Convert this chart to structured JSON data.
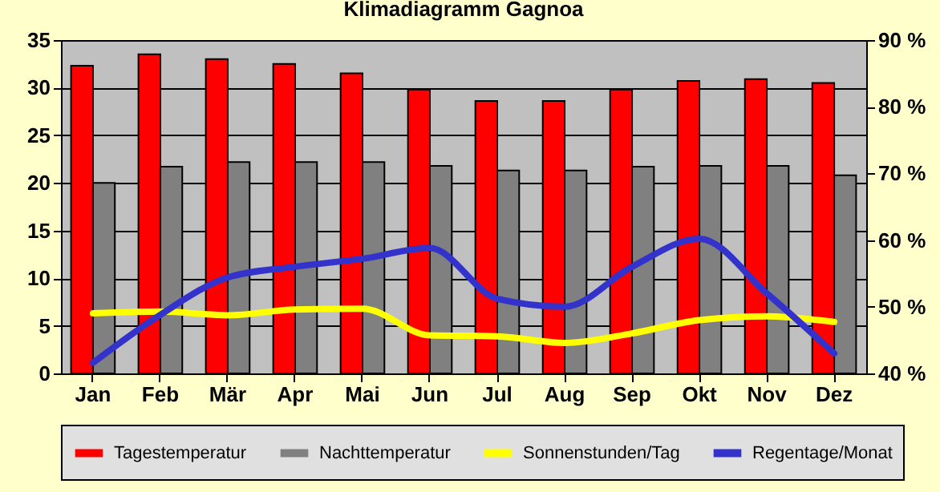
{
  "chart_data": {
    "type": "bar",
    "title": "Klimadiagramm Gagnoa",
    "categories": [
      "Jan",
      "Feb",
      "Mär",
      "Apr",
      "Mai",
      "Jun",
      "Jul",
      "Aug",
      "Sep",
      "Okt",
      "Nov",
      "Dez"
    ],
    "series": [
      {
        "name": "Tagestemperatur",
        "color": "#ff0000",
        "values": [
          32.3,
          33.5,
          33.0,
          32.5,
          31.5,
          29.8,
          28.6,
          28.6,
          29.8,
          30.7,
          30.9,
          30.5
        ]
      },
      {
        "name": "Nachttemperatur",
        "color": "#808080",
        "values": [
          20.0,
          21.7,
          22.2,
          22.2,
          22.2,
          21.8,
          21.3,
          21.3,
          21.7,
          21.8,
          21.8,
          20.8
        ]
      },
      {
        "name": "Sonnenstunden/Tag",
        "color": "#ffff00",
        "type": "line",
        "values": [
          6.3,
          6.5,
          6.1,
          6.7,
          6.8,
          4.0,
          3.9,
          3.2,
          4.2,
          5.6,
          6.0,
          5.4
        ]
      },
      {
        "name": "Regentage/Monat",
        "color": "#3333cc",
        "type": "line",
        "axis": "y2",
        "values": [
          41.6,
          48.8,
          54.4,
          56.0,
          57.2,
          58.8,
          51.2,
          50.0,
          56.0,
          60.2,
          52.0,
          43.0
        ]
      }
    ],
    "ylim": [
      0,
      35
    ],
    "yticks": [
      0,
      5,
      10,
      15,
      20,
      25,
      30,
      35
    ],
    "y2lim": [
      40,
      90
    ],
    "y2ticks": [
      {
        "value": 40,
        "label": "40 %"
      },
      {
        "value": 50,
        "label": "50 %"
      },
      {
        "value": 60,
        "label": "60 %"
      },
      {
        "value": 70,
        "label": "70 %"
      },
      {
        "value": 80,
        "label": "80 %"
      },
      {
        "value": 90,
        "label": "90 %"
      }
    ],
    "grid": "y",
    "legend": "bottom"
  }
}
